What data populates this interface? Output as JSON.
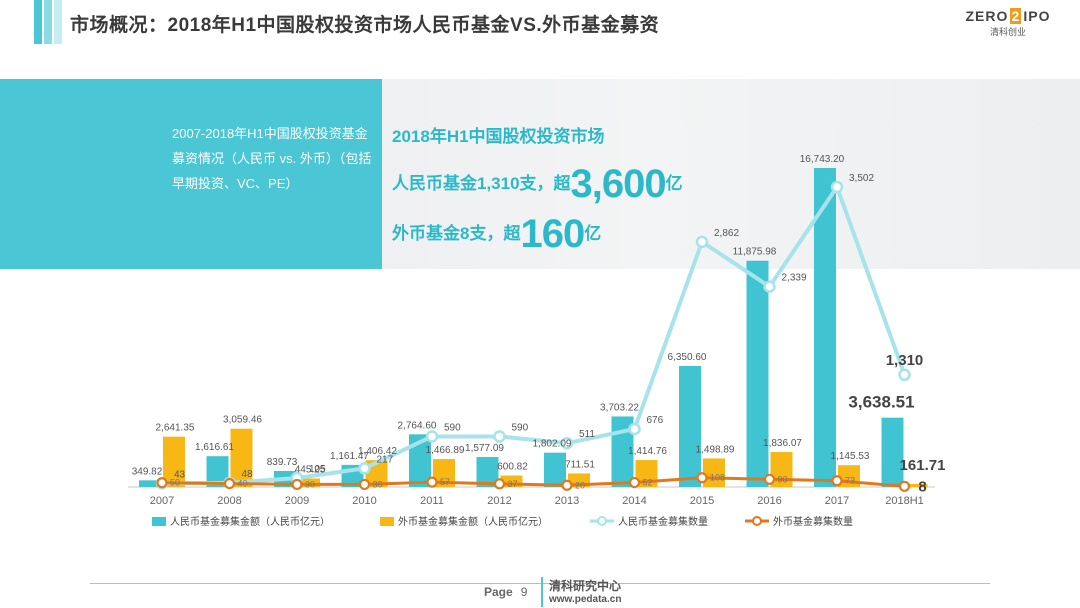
{
  "header": {
    "title": "市场概况：2018年H1中国股权投资市场人民币基金VS.外币基金募资",
    "logo_word_left": "ZERO",
    "logo_word_mid": "2",
    "logo_word_right": "IPO",
    "logo_cn": "清科创业",
    "bar_colors": [
      "#4bc6d4",
      "#8adbe3",
      "#c6edf1"
    ]
  },
  "banner": {
    "left_text": "2007-2018年H1中国股权投资基金募资情况（人民币 vs. 外币）（包括早期投资、VC、PE）",
    "line1": "2018年H1中国股权投资市场",
    "line2_pre": "人民币基金1,310支，超",
    "line2_big": "3,600",
    "line2_post": "亿",
    "line3_pre": "外币基金8支，超",
    "line3_big": "160",
    "line3_post": "亿"
  },
  "chart_data": {
    "type": "bar",
    "categories": [
      "2007",
      "2008",
      "2009",
      "2010",
      "2011",
      "2012",
      "2013",
      "2014",
      "2015",
      "2016",
      "2017",
      "2018H1"
    ],
    "series": [
      {
        "name": "人民币基金募集金额（人民币亿元）",
        "kind": "bar",
        "color": "#40c4d2",
        "values": [
          349.82,
          1616.61,
          839.73,
          1161.47,
          2764.6,
          1577.09,
          1802.09,
          3703.22,
          6350.6,
          11875.98,
          16743.2,
          3638.51
        ],
        "labels": [
          "349.82",
          "1,616.61",
          "839.73",
          "1,161.47",
          "2,764.60",
          "1,577.09",
          "1,802.09",
          "3,703.22",
          "6,350.60",
          "11,875.98",
          "16,743.20",
          "3,638.51"
        ]
      },
      {
        "name": "外币基金募集金额（人民币亿元）",
        "kind": "bar",
        "color": "#f7b816",
        "values": [
          2641.35,
          3059.46,
          445.25,
          1406.42,
          1466.89,
          600.82,
          711.51,
          1414.76,
          1498.89,
          1836.07,
          1145.53,
          161.71
        ],
        "labels": [
          "2,641.35",
          "3,059.46",
          "445.25",
          "1,406.42",
          "1,466.89",
          "600.82",
          "711.51",
          "1,414.76",
          "1,498.89",
          "1,836.07",
          "1,145.53",
          "161.71"
        ]
      },
      {
        "name": "人民币基金募集数量",
        "kind": "line",
        "color": "#a7e3ea",
        "values": [
          43,
          48,
          105,
          217,
          590,
          590,
          511,
          676,
          2862,
          2339,
          3502,
          1310
        ],
        "labels": [
          "43",
          "48",
          "105",
          "217",
          "590",
          "590",
          "511",
          "676",
          "2,862",
          "2,339",
          "3,502",
          "1,310"
        ]
      },
      {
        "name": "外币基金募集数量",
        "kind": "line",
        "color": "#e0781e",
        "values": [
          50,
          40,
          30,
          30,
          57,
          37,
          20,
          52,
          108,
          90,
          73,
          8
        ],
        "labels": [
          "50",
          "40",
          "30",
          "30",
          "57",
          "37",
          "20",
          "52",
          "108",
          "90",
          "73",
          "8"
        ]
      }
    ],
    "ylim_amount": [
      0,
      16743.2
    ],
    "ylim_count": [
      0,
      3502
    ],
    "legend_position": "bottom",
    "grid": false
  },
  "footer": {
    "page_label": "Page",
    "page_number": "9",
    "org": "清科研究中心",
    "url": "www.pedata.cn"
  }
}
